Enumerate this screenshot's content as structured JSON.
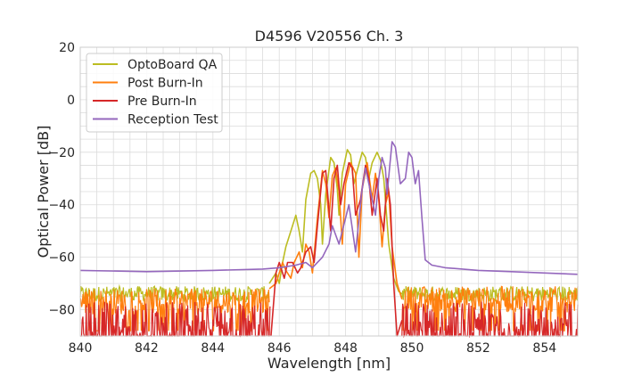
{
  "chart_data": {
    "type": "line",
    "title": "D4596 V20556 Ch. 3",
    "xlabel": "Wavelength [nm]",
    "ylabel": "Optical Power [dB]",
    "xlim": [
      840,
      855
    ],
    "ylim": [
      -90,
      20
    ],
    "xticks": [
      840,
      842,
      844,
      846,
      848,
      850,
      852,
      854
    ],
    "yticks": [
      20,
      0,
      -20,
      -40,
      -60,
      -80
    ],
    "ytick_labels": [
      "20",
      "0",
      "−20",
      "−40",
      "−60",
      "−80"
    ],
    "grid": true,
    "legend_position": "top-left",
    "series": [
      {
        "name": "OptoBoard QA",
        "color": "#bcbd22",
        "noise_floor": -74,
        "noise_range": [
          840,
          845.7
        ],
        "noise_floor_right": -74,
        "noise_range_right": [
          849.7,
          855
        ],
        "points": [
          [
            845.7,
            -70
          ],
          [
            845.9,
            -66
          ],
          [
            846.0,
            -70
          ],
          [
            846.1,
            -62
          ],
          [
            846.2,
            -56
          ],
          [
            846.35,
            -50
          ],
          [
            846.5,
            -44
          ],
          [
            846.6,
            -50
          ],
          [
            846.7,
            -58
          ],
          [
            846.8,
            -38
          ],
          [
            846.95,
            -28
          ],
          [
            847.05,
            -27
          ],
          [
            847.15,
            -30
          ],
          [
            847.25,
            -40
          ],
          [
            847.3,
            -55
          ],
          [
            847.4,
            -36
          ],
          [
            847.55,
            -22
          ],
          [
            847.65,
            -24
          ],
          [
            847.75,
            -34
          ],
          [
            847.8,
            -44
          ],
          [
            847.9,
            -28
          ],
          [
            848.05,
            -19
          ],
          [
            848.15,
            -21
          ],
          [
            848.25,
            -32
          ],
          [
            848.35,
            -27
          ],
          [
            848.5,
            -20
          ],
          [
            848.6,
            -22
          ],
          [
            848.7,
            -30
          ],
          [
            848.8,
            -24
          ],
          [
            848.95,
            -20
          ],
          [
            849.05,
            -23
          ],
          [
            849.15,
            -30
          ],
          [
            849.3,
            -55
          ],
          [
            849.45,
            -68
          ],
          [
            849.6,
            -73
          ],
          [
            849.7,
            -74
          ]
        ]
      },
      {
        "name": "Post Burn-In",
        "color": "#ff7f0e",
        "noise_floor": -77,
        "noise_range": [
          840,
          845.7
        ],
        "noise_floor_right": -76,
        "noise_range_right": [
          849.7,
          855
        ],
        "points": [
          [
            845.7,
            -72
          ],
          [
            845.9,
            -70
          ],
          [
            846.0,
            -66
          ],
          [
            846.1,
            -62
          ],
          [
            846.2,
            -65
          ],
          [
            846.35,
            -68
          ],
          [
            846.45,
            -62
          ],
          [
            846.6,
            -58
          ],
          [
            846.7,
            -64
          ],
          [
            846.8,
            -55
          ],
          [
            846.9,
            -58
          ],
          [
            847.0,
            -66
          ],
          [
            847.15,
            -45
          ],
          [
            847.3,
            -27
          ],
          [
            847.4,
            -32
          ],
          [
            847.5,
            -45
          ],
          [
            847.6,
            -29
          ],
          [
            847.7,
            -26
          ],
          [
            847.8,
            -35
          ],
          [
            847.9,
            -55
          ],
          [
            848.0,
            -32
          ],
          [
            848.15,
            -24
          ],
          [
            848.3,
            -28
          ],
          [
            848.4,
            -60
          ],
          [
            848.5,
            -34
          ],
          [
            848.65,
            -24
          ],
          [
            848.75,
            -33
          ],
          [
            848.8,
            -38
          ],
          [
            848.9,
            -28
          ],
          [
            849.0,
            -38
          ],
          [
            849.1,
            -56
          ],
          [
            849.2,
            -40
          ],
          [
            849.3,
            -35
          ],
          [
            849.4,
            -56
          ],
          [
            849.55,
            -70
          ],
          [
            849.7,
            -76
          ]
        ]
      },
      {
        "name": "Pre Burn-In",
        "color": "#d62728",
        "noise_floor": -84,
        "noise_range": [
          840,
          845.75
        ],
        "noise_floor_right": -84,
        "noise_range_right": [
          849.7,
          855
        ],
        "points": [
          [
            845.75,
            -90
          ],
          [
            845.9,
            -66
          ],
          [
            846.0,
            -62
          ],
          [
            846.15,
            -68
          ],
          [
            846.25,
            -62
          ],
          [
            846.4,
            -62
          ],
          [
            846.55,
            -66
          ],
          [
            846.65,
            -64
          ],
          [
            846.8,
            -58
          ],
          [
            846.95,
            -56
          ],
          [
            847.05,
            -62
          ],
          [
            847.15,
            -48
          ],
          [
            847.3,
            -28
          ],
          [
            847.4,
            -27
          ],
          [
            847.55,
            -50
          ],
          [
            847.65,
            -30
          ],
          [
            847.75,
            -25
          ],
          [
            847.85,
            -40
          ],
          [
            847.95,
            -32
          ],
          [
            848.1,
            -24
          ],
          [
            848.2,
            -26
          ],
          [
            848.3,
            -44
          ],
          [
            848.45,
            -38
          ],
          [
            848.6,
            -25
          ],
          [
            848.7,
            -30
          ],
          [
            848.8,
            -44
          ],
          [
            848.95,
            -30
          ],
          [
            849.05,
            -44
          ],
          [
            849.15,
            -50
          ],
          [
            849.25,
            -30
          ],
          [
            849.35,
            -40
          ],
          [
            849.45,
            -70
          ],
          [
            849.55,
            -90
          ],
          [
            849.7,
            -84
          ]
        ]
      },
      {
        "name": "Reception Test",
        "color": "#9467bd",
        "points": [
          [
            840,
            -65
          ],
          [
            842,
            -65.5
          ],
          [
            844,
            -65
          ],
          [
            845.5,
            -64.5
          ],
          [
            846.0,
            -64
          ],
          [
            846.5,
            -63
          ],
          [
            846.8,
            -62
          ],
          [
            847.0,
            -64
          ],
          [
            847.3,
            -60
          ],
          [
            847.5,
            -55
          ],
          [
            847.6,
            -48
          ],
          [
            847.8,
            -55
          ],
          [
            848.0,
            -45
          ],
          [
            848.1,
            -40
          ],
          [
            848.3,
            -58
          ],
          [
            848.5,
            -34
          ],
          [
            848.6,
            -26
          ],
          [
            848.8,
            -38
          ],
          [
            848.9,
            -44
          ],
          [
            849.0,
            -30
          ],
          [
            849.1,
            -22
          ],
          [
            849.2,
            -26
          ],
          [
            849.25,
            -36
          ],
          [
            849.4,
            -16
          ],
          [
            849.5,
            -18
          ],
          [
            849.65,
            -32
          ],
          [
            849.8,
            -30
          ],
          [
            849.9,
            -20
          ],
          [
            850.0,
            -22
          ],
          [
            850.1,
            -32
          ],
          [
            850.2,
            -27
          ],
          [
            850.3,
            -45
          ],
          [
            850.4,
            -61
          ],
          [
            850.6,
            -63
          ],
          [
            851.0,
            -64
          ],
          [
            852.0,
            -65
          ],
          [
            853.0,
            -65.5
          ],
          [
            854.0,
            -66
          ],
          [
            855.0,
            -66.5
          ]
        ]
      }
    ]
  }
}
